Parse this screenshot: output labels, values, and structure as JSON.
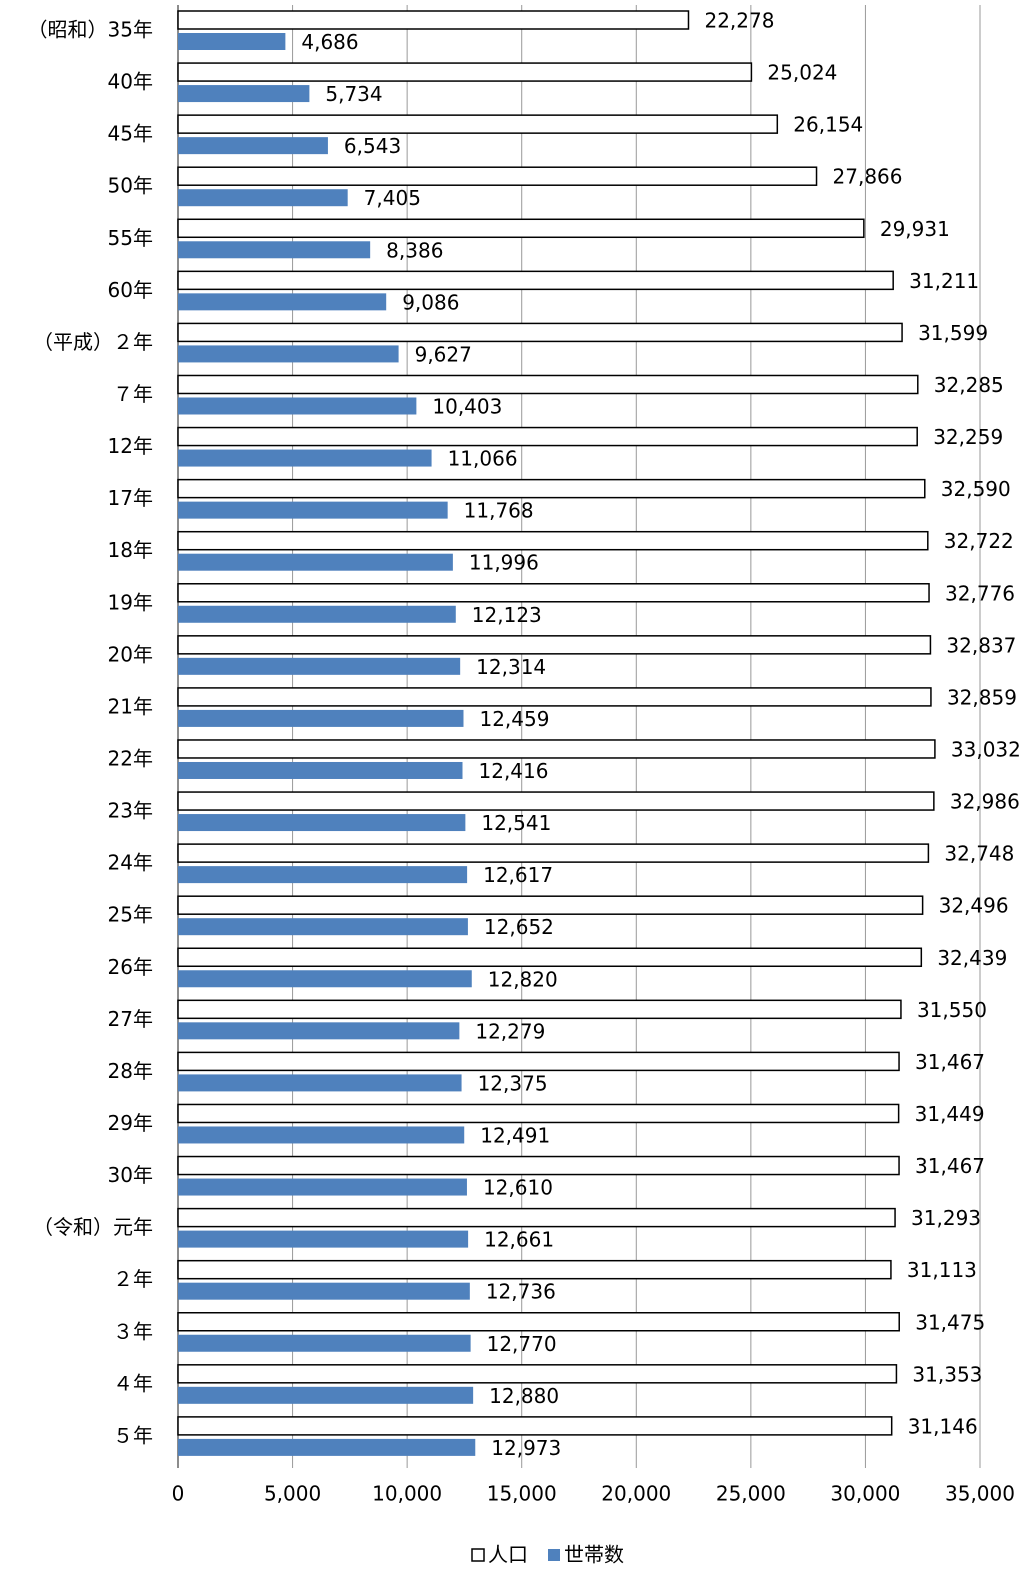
{
  "chart_data": {
    "type": "bar",
    "orientation": "horizontal",
    "categories": [
      "（昭和）35年",
      "40年",
      "45年",
      "50年",
      "55年",
      "60年",
      "（平成）２年",
      "７年",
      "12年",
      "17年",
      "18年",
      "19年",
      "20年",
      "21年",
      "22年",
      "23年",
      "24年",
      "25年",
      "26年",
      "27年",
      "28年",
      "29年",
      "30年",
      "（令和）元年",
      "２年",
      "３年",
      "４年",
      "５年"
    ],
    "series": [
      {
        "name": "人口",
        "color": "#ffffff",
        "values": [
          22278,
          25024,
          26154,
          27866,
          29931,
          31211,
          31599,
          32285,
          32259,
          32590,
          32722,
          32776,
          32837,
          32859,
          33032,
          32986,
          32748,
          32496,
          32439,
          31550,
          31467,
          31449,
          31467,
          31293,
          31113,
          31475,
          31353,
          31146
        ],
        "value_labels": [
          "22,278",
          "25,024",
          "26,154",
          "27,866",
          "29,931",
          "31,211",
          "31,599",
          "32,285",
          "32,259",
          "32,590",
          "32,722",
          "32,776",
          "32,837",
          "32,859",
          "33,032",
          "32,986",
          "32,748",
          "32,496",
          "32,439",
          "31,550",
          "31,467",
          "31,449",
          "31,467",
          "31,293",
          "31,113",
          "31,475",
          "31,353",
          "31,146"
        ]
      },
      {
        "name": "世帯数",
        "color": "#4f81bd",
        "values": [
          4686,
          5734,
          6543,
          7405,
          8386,
          9086,
          9627,
          10403,
          11066,
          11768,
          11996,
          12123,
          12314,
          12459,
          12416,
          12541,
          12617,
          12652,
          12820,
          12279,
          12375,
          12491,
          12610,
          12661,
          12736,
          12770,
          12880,
          12973
        ],
        "value_labels": [
          "4,686",
          "5,734",
          "6,543",
          "7,405",
          "8,386",
          "9,086",
          "9,627",
          "10,403",
          "11,066",
          "11,768",
          "11,996",
          "12,123",
          "12,314",
          "12,459",
          "12,416",
          "12,541",
          "12,617",
          "12,652",
          "12,820",
          "12,279",
          "12,375",
          "12,491",
          "12,610",
          "12,661",
          "12,736",
          "12,770",
          "12,880",
          "12,973"
        ]
      }
    ],
    "xlim": [
      0,
      35000
    ],
    "xticks": [
      0,
      {
        "value": 5000,
        "label": "5,000"
      },
      {
        "value": 10000,
        "label": "10,000"
      },
      {
        "value": 15000,
        "label": "15,000"
      },
      {
        "value": 20000,
        "label": "20,000"
      },
      {
        "value": 25000,
        "label": "25,000"
      },
      {
        "value": 30000,
        "label": "30,000"
      },
      {
        "value": 35000,
        "label": "35,000"
      }
    ],
    "grid": true,
    "legend": "bottom"
  }
}
